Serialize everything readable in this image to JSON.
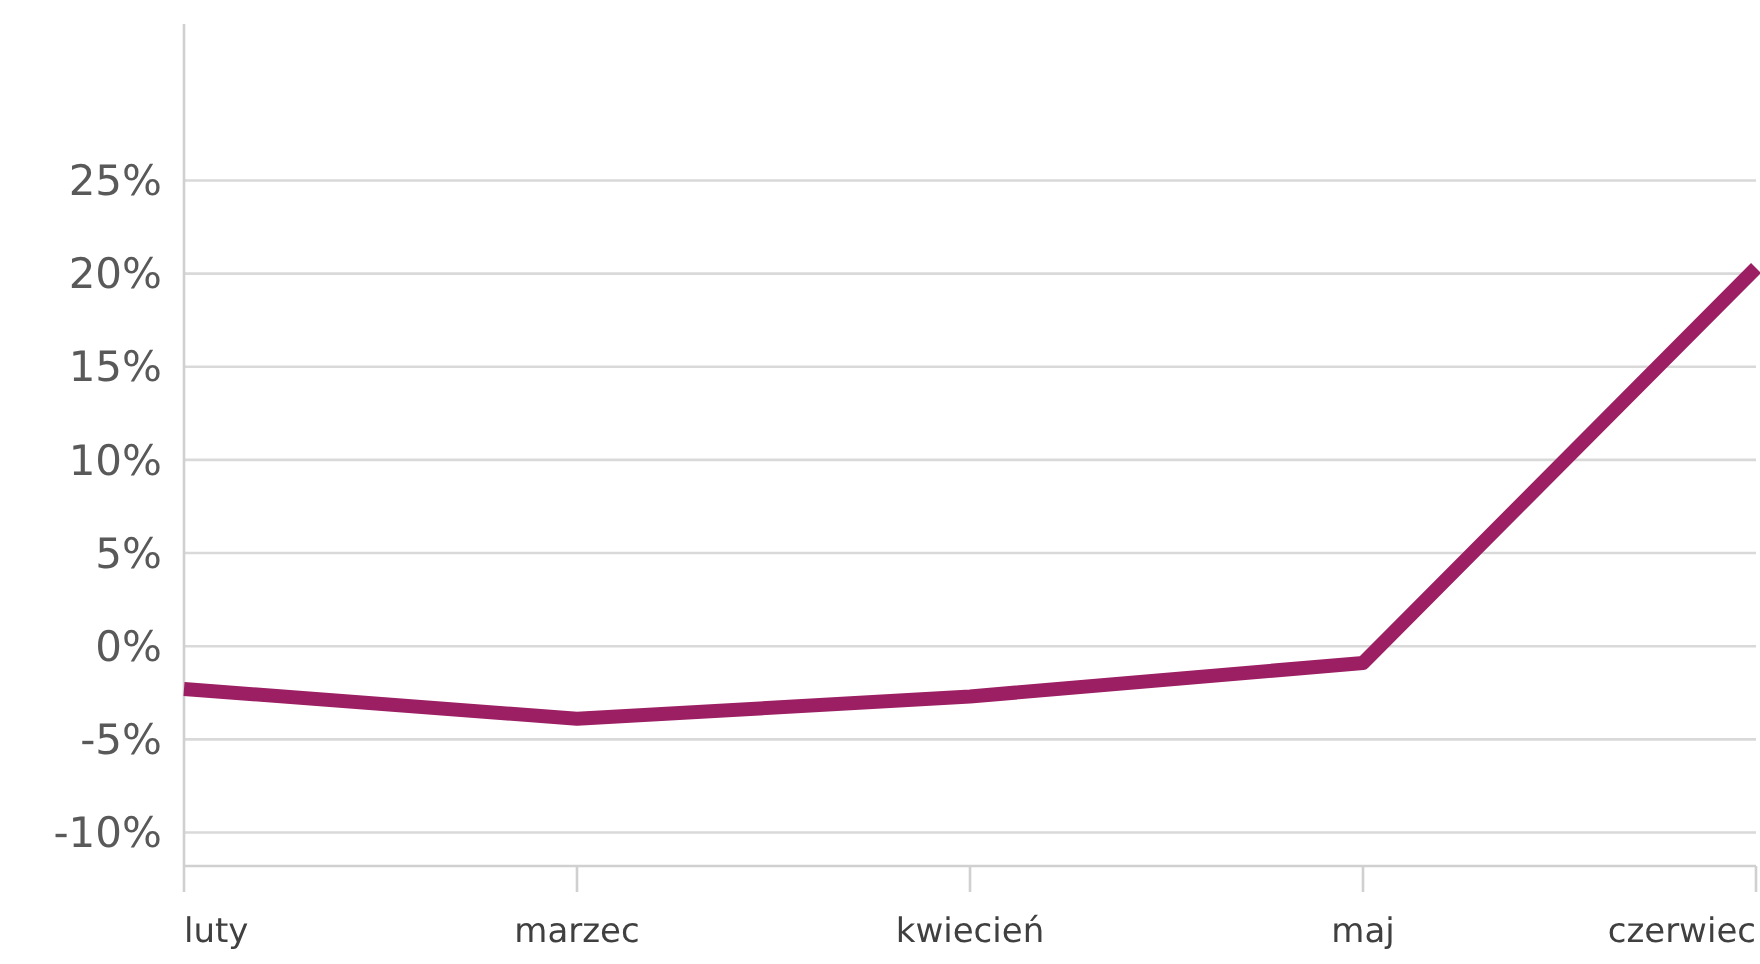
{
  "chart_data": {
    "type": "line",
    "categories": [
      "luty",
      "marzec",
      "kwiecień",
      "maj",
      "czerwiec"
    ],
    "series": [
      {
        "color": "#9c1f63",
        "values": [
          -2.3,
          -3.9,
          -2.7,
          -0.9,
          20.3
        ]
      }
    ],
    "ylim": [
      -11.8,
      33.4
    ],
    "yticks": [
      {
        "value": -10,
        "label": "-10%"
      },
      {
        "value": -5,
        "label": "-5%"
      },
      {
        "value": 0,
        "label": "0%"
      },
      {
        "value": 5,
        "label": "5%"
      },
      {
        "value": 10,
        "label": "10%"
      },
      {
        "value": 15,
        "label": "15%"
      },
      {
        "value": 20,
        "label": "20%"
      },
      {
        "value": 25,
        "label": "25%"
      }
    ],
    "grid": "y"
  }
}
